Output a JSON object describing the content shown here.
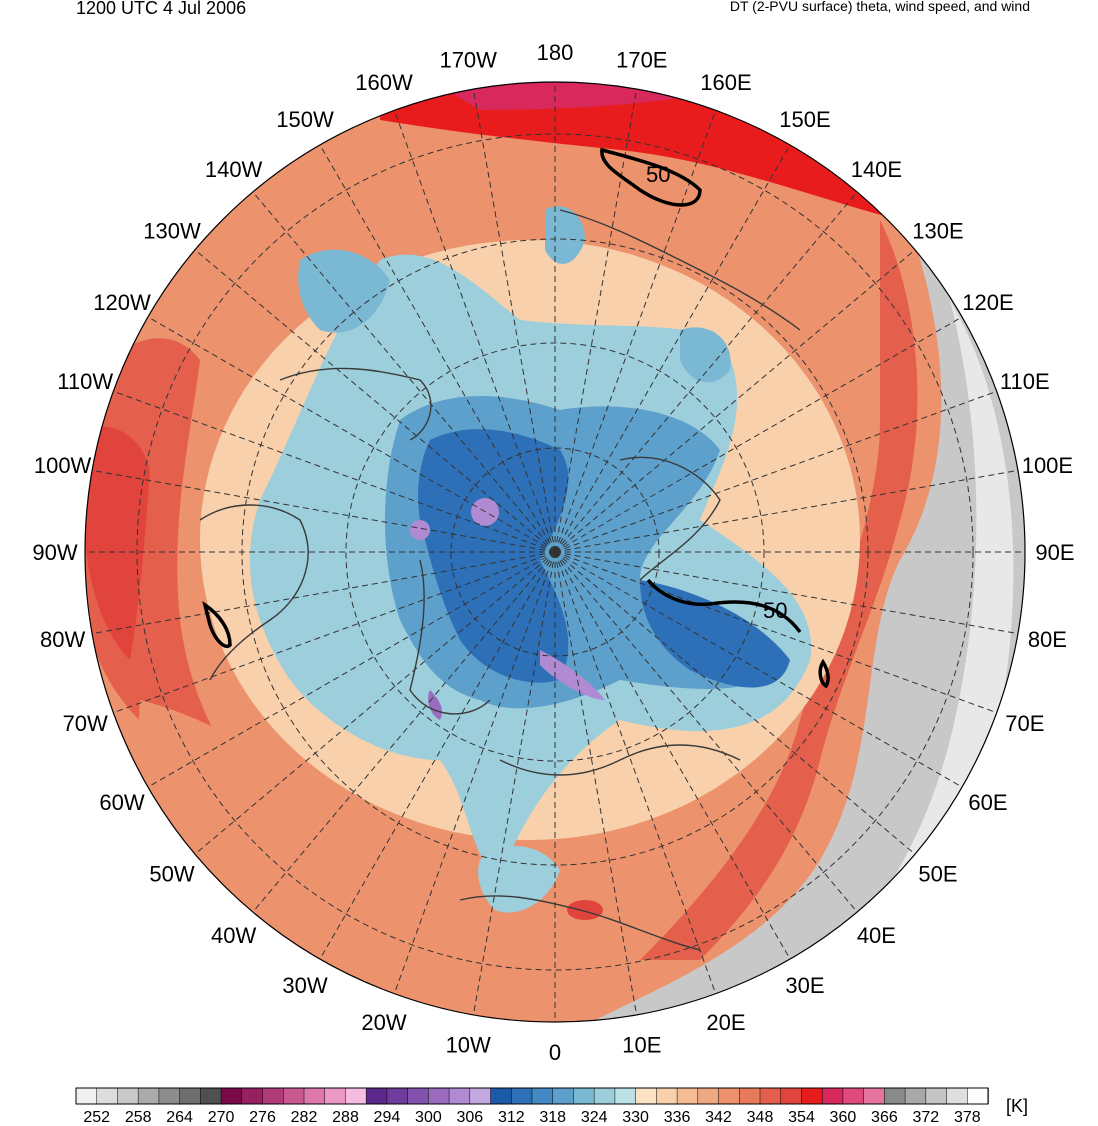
{
  "header": {
    "datetime": "1200 UTC 4 Jul 2006",
    "product": "DT (2-PVU surface) theta, wind speed, and wind"
  },
  "map": {
    "projection": "north-polar-stereographic",
    "longitude_labels": [
      "0",
      "10E",
      "20E",
      "30E",
      "40E",
      "50E",
      "60E",
      "70E",
      "80E",
      "90E",
      "100E",
      "110E",
      "120E",
      "130E",
      "140E",
      "150E",
      "160E",
      "170E",
      "180",
      "170W",
      "160W",
      "150W",
      "140W",
      "130W",
      "120W",
      "110W",
      "100W",
      "90W",
      "80W",
      "70W",
      "60W",
      "50W",
      "40W",
      "30W",
      "20W",
      "10W"
    ],
    "wind_speed_contour_label": "50"
  },
  "colorbar": {
    "tick_labels": [
      "252",
      "258",
      "264",
      "270",
      "276",
      "282",
      "288",
      "294",
      "300",
      "306",
      "312",
      "318",
      "324",
      "330",
      "336",
      "342",
      "348",
      "354",
      "360",
      "366",
      "372",
      "378"
    ],
    "units": "[K]",
    "colors": [
      "#f0f0f0",
      "#dddddd",
      "#c8c8c8",
      "#aaaaaa",
      "#8c8c8c",
      "#6e6e6e",
      "#505050",
      "#7a0a4a",
      "#962060",
      "#b03b78",
      "#c85890",
      "#de78aa",
      "#ec98c4",
      "#f6bce0",
      "#5a2a8a",
      "#6e3c9c",
      "#8252ae",
      "#9a6cc0",
      "#b08ad2",
      "#c4a8e0",
      "#1a5aa8",
      "#2e70b8",
      "#4488c4",
      "#5ea0cc",
      "#7ab8d4",
      "#9ccedc",
      "#bce0e4",
      "#fbe2c4",
      "#f8d0ac",
      "#f4bc94",
      "#f0a880",
      "#ec926c",
      "#e87a5c",
      "#e4604c",
      "#e0443c",
      "#e81c1c",
      "#d8285c",
      "#de4a7c",
      "#e4749c",
      "#8a8a8a",
      "#a8a8a8",
      "#c4c4c4",
      "#dedede",
      "#ffffff"
    ]
  }
}
